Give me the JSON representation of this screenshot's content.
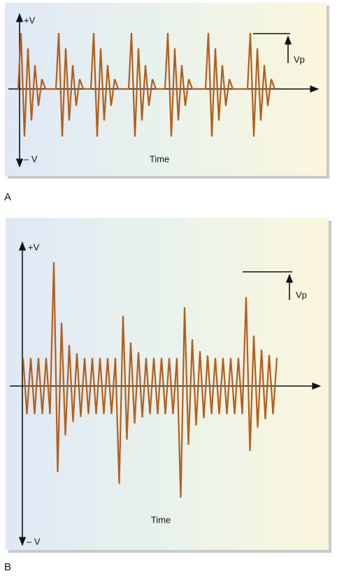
{
  "panels": [
    {
      "label": "A",
      "y_positive": "+V",
      "y_negative": "– V",
      "x_axis": "Time",
      "peak_marker": "Vp"
    },
    {
      "label": "B",
      "y_positive": "+V",
      "y_negative": "– V",
      "x_axis": "Time",
      "peak_marker": "Vp"
    }
  ]
}
